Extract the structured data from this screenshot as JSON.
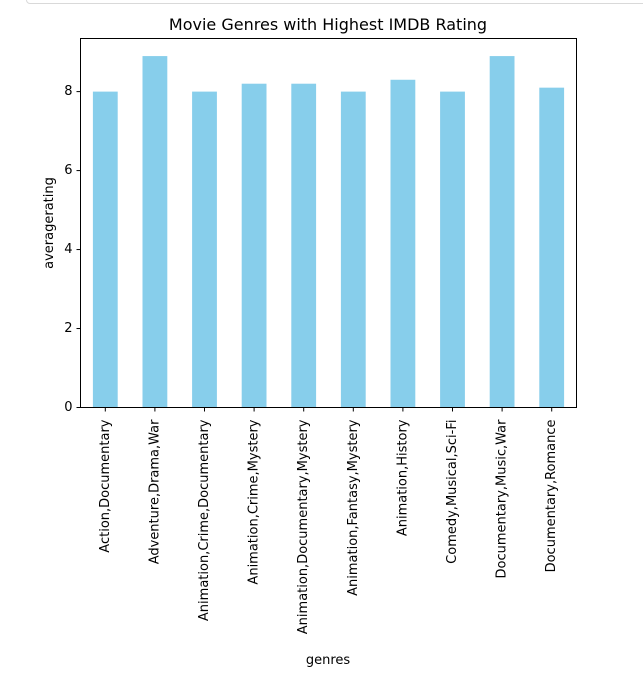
{
  "chart_data": {
    "type": "bar",
    "title": "Movie Genres with Highest IMDB Rating",
    "xlabel": "genres",
    "ylabel": "averagerating",
    "categories": [
      "Action,Documentary",
      "Adventure,Drama,War",
      "Animation,Crime,Documentary",
      "Animation,Crime,Mystery",
      "Animation,Documentary,Mystery",
      "Animation,Fantasy,Mystery",
      "Animation,History",
      "Comedy,Musical,Sci-Fi",
      "Documentary,Music,War",
      "Documentary,Romance"
    ],
    "values": [
      8.0,
      8.9,
      8.0,
      8.2,
      8.2,
      8.0,
      8.3,
      8.0,
      8.9,
      8.1
    ],
    "ylim": [
      0,
      9.345
    ],
    "yticks": [
      0,
      2,
      4,
      6,
      8
    ],
    "bar_color": "#87ceeb",
    "grid": false,
    "legend": "none"
  }
}
